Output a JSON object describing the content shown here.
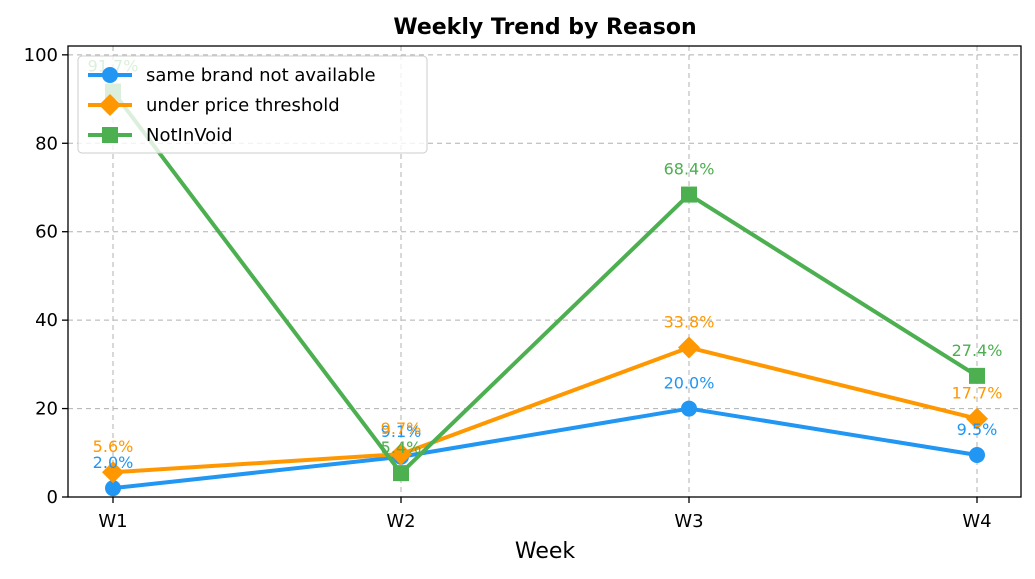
{
  "chart_data": {
    "type": "line",
    "title": "Weekly Trend by Reason",
    "xlabel": "Week",
    "ylabel": "",
    "categories": [
      "W1",
      "W2",
      "W3",
      "W4"
    ],
    "ylim": [
      0,
      102
    ],
    "yticks": [
      0,
      20,
      40,
      60,
      80,
      100
    ],
    "grid": true,
    "legend_position": "top-left",
    "series": [
      {
        "name": "same brand not available",
        "values": [
          2.0,
          9.1,
          20.0,
          9.5
        ],
        "labels": [
          "2.0%",
          "9.1%",
          "20.0%",
          "9.5%"
        ],
        "color": "#2196f3",
        "marker": "circle"
      },
      {
        "name": "under price threshold",
        "values": [
          5.6,
          9.7,
          33.8,
          17.7
        ],
        "labels": [
          "5.6%",
          "9.7%",
          "33.8%",
          "17.7%"
        ],
        "color": "#ff9800",
        "marker": "diamond"
      },
      {
        "name": "NotInVoid",
        "values": [
          91.7,
          5.4,
          68.4,
          27.4
        ],
        "labels": [
          "91.7%",
          "5.4%",
          "68.4%",
          "27.4%"
        ],
        "color": "#4caf50",
        "marker": "square"
      }
    ]
  }
}
